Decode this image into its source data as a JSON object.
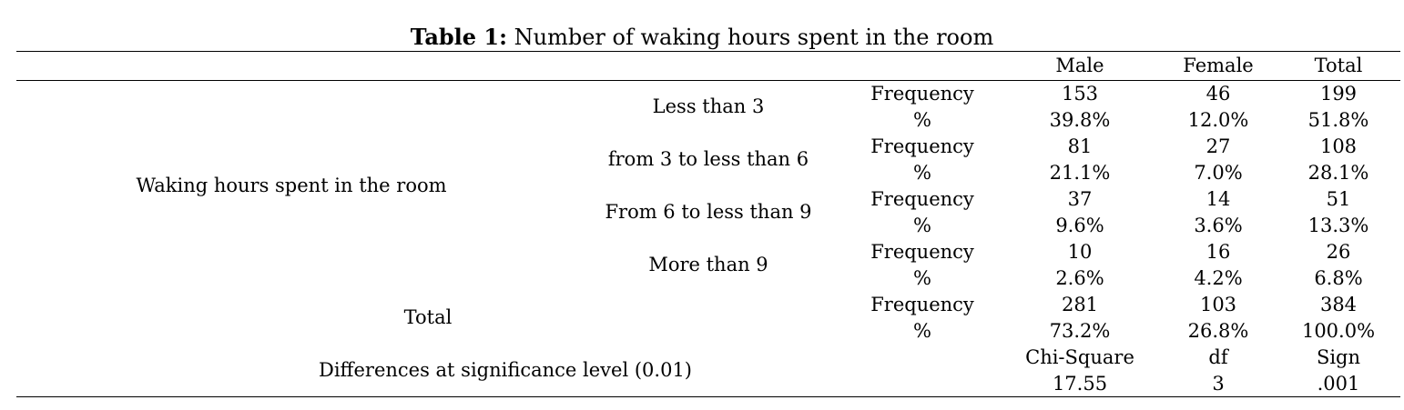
{
  "caption": {
    "label": "Table 1:",
    "text": "Number of waking hours spent in the room"
  },
  "columns": [
    "Male",
    "Female",
    "Total"
  ],
  "row_group_label": "Waking hours spent in the room",
  "groups": [
    {
      "category": "Less than 3",
      "stat_labels": [
        "Frequency",
        "%"
      ],
      "frequency": [
        "153",
        "46",
        "199"
      ],
      "percent": [
        "39.8%",
        "12.0%",
        "51.8%"
      ]
    },
    {
      "category": "from 3 to less than 6",
      "stat_labels": [
        "Frequency",
        "%"
      ],
      "frequency": [
        "81",
        "27",
        "108"
      ],
      "percent": [
        "21.1%",
        "7.0%",
        "28.1%"
      ]
    },
    {
      "category": "From 6 to less than 9",
      "stat_labels": [
        "Frequency",
        "%"
      ],
      "frequency": [
        "37",
        "14",
        "51"
      ],
      "percent": [
        "9.6%",
        "3.6%",
        "13.3%"
      ]
    },
    {
      "category": "More than 9",
      "stat_labels": [
        "Frequency",
        "%"
      ],
      "frequency": [
        "10",
        "16",
        "26"
      ],
      "percent": [
        "2.6%",
        "4.2%",
        "6.8%"
      ]
    }
  ],
  "total_row": {
    "label": "Total",
    "stat_labels": [
      "Frequency",
      "%"
    ],
    "frequency": [
      "281",
      "103",
      "384"
    ],
    "percent": [
      "73.2%",
      "26.8%",
      "100.0%"
    ]
  },
  "significance_row": {
    "label": "Differences at significance level (0.01)",
    "headers": [
      "Chi-Square",
      "df",
      "Sign"
    ],
    "values": [
      "17.55",
      "3",
      ".001"
    ]
  }
}
